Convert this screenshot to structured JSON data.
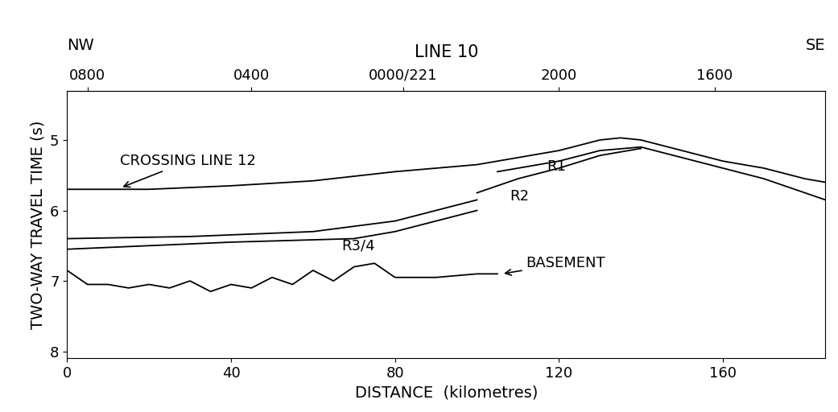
{
  "chart_data": {
    "type": "line",
    "title": "LINE 10",
    "corner_labels": [
      "NW",
      "SE"
    ],
    "x_label": "DISTANCE  (kilometres)",
    "y_label": "TWO-WAY TRAVEL TIME (s)",
    "xlim": [
      0,
      185
    ],
    "xticks": [
      0,
      40,
      80,
      120,
      160
    ],
    "ylim": [
      8.1,
      4.3
    ],
    "yticks": [
      5,
      6,
      7,
      8
    ],
    "top_ticks": [
      {
        "value": 5,
        "label": "0800"
      },
      {
        "value": 45,
        "label": "0400"
      },
      {
        "value": 82,
        "label": "0000/221"
      },
      {
        "value": 120,
        "label": "2000"
      },
      {
        "value": 158,
        "label": "1600"
      }
    ],
    "grid": false,
    "series": [
      {
        "color": "#000000",
        "line_style": "solid",
        "x": [
          0,
          20,
          40,
          60,
          80,
          100,
          120,
          130,
          135,
          140,
          150,
          160,
          170,
          180,
          185
        ],
        "values": [
          5.7,
          5.7,
          5.65,
          5.58,
          5.45,
          5.35,
          5.15,
          5.0,
          4.97,
          5.0,
          5.15,
          5.3,
          5.4,
          5.55,
          5.6
        ]
      },
      {
        "color": "#000000",
        "line_style": "solid",
        "x": [
          105,
          120,
          130,
          140,
          150,
          160,
          170,
          180,
          185
        ],
        "values": [
          5.45,
          5.3,
          5.15,
          5.1,
          5.25,
          5.4,
          5.55,
          5.75,
          5.85
        ]
      },
      {
        "color": "#000000",
        "line_style": "solid",
        "x": [
          100,
          110,
          120,
          130,
          140
        ],
        "values": [
          5.75,
          5.55,
          5.4,
          5.22,
          5.12
        ]
      },
      {
        "color": "#000000",
        "line_style": "solid",
        "x": [
          0,
          30,
          60,
          80,
          90,
          100
        ],
        "values": [
          6.4,
          6.37,
          6.3,
          6.15,
          6.0,
          5.85
        ]
      },
      {
        "color": "#000000",
        "line_style": "solid",
        "x": [
          0,
          40,
          70,
          80,
          90,
          100
        ],
        "values": [
          6.55,
          6.45,
          6.4,
          6.3,
          6.15,
          6.0
        ]
      },
      {
        "color": "#000000",
        "line_style": "solid",
        "x": [
          0,
          5,
          10,
          15,
          20,
          25,
          30,
          35,
          40,
          45,
          50,
          55,
          60,
          65,
          70,
          75,
          80,
          90,
          100,
          105
        ],
        "values": [
          6.85,
          7.05,
          7.05,
          7.1,
          7.05,
          7.1,
          7.0,
          7.15,
          7.05,
          7.1,
          6.95,
          7.05,
          6.85,
          7.0,
          6.8,
          6.75,
          6.95,
          6.95,
          6.9,
          6.9
        ]
      }
    ],
    "annotations": [
      {
        "text": "CROSSING LINE 12",
        "xy": [
          13,
          5.68
        ],
        "xytext": [
          13,
          5.3
        ],
        "arrow": true
      },
      {
        "text": "BASEMENT",
        "xy": [
          106,
          6.9
        ],
        "xytext": [
          112,
          6.75
        ],
        "arrow": true
      },
      {
        "text": "R1",
        "xy": [
          117,
          5.38
        ],
        "xytext": [
          117,
          5.38
        ],
        "arrow": false
      },
      {
        "text": "R2",
        "xy": [
          108,
          5.8
        ],
        "xytext": [
          108,
          5.8
        ],
        "arrow": false
      },
      {
        "text": "R3/4",
        "xy": [
          67,
          6.5
        ],
        "xytext": [
          67,
          6.5
        ],
        "arrow": false
      }
    ]
  }
}
